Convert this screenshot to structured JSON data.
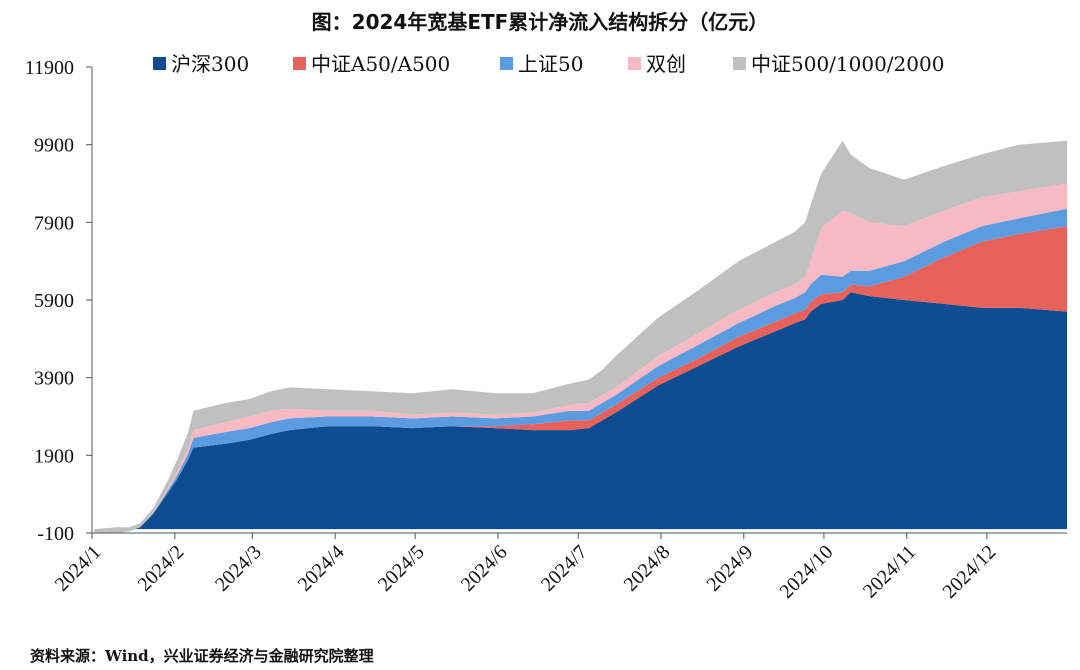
{
  "title": "图：2024年宽基ETF累计净流入结构拆分（亿元）",
  "source": "资料来源：Wind，兴业证券经济与金融研究院整理",
  "chart_data": {
    "type": "area",
    "stacked": true,
    "title": "图：2024年宽基ETF累计净流入结构拆分（亿元）",
    "xlabel": "",
    "ylabel": "",
    "ylim": [
      -100,
      11900
    ],
    "yticks": [
      -100,
      1900,
      3900,
      5900,
      7900,
      9900,
      11900
    ],
    "xtick_labels": [
      "2024/1",
      "2024/2",
      "2024/3",
      "2024/4",
      "2024/5",
      "2024/6",
      "2024/7",
      "2024/8",
      "2024/9",
      "2024/10",
      "2024/11",
      "2024/12"
    ],
    "legend_position": "top",
    "x": [
      "2024-01-02",
      "2024-01-10",
      "2024-01-15",
      "2024-01-19",
      "2024-01-24",
      "2024-01-29",
      "2024-02-02",
      "2024-02-06",
      "2024-02-08",
      "2024-02-20",
      "2024-02-29",
      "2024-03-08",
      "2024-03-15",
      "2024-03-29",
      "2024-04-15",
      "2024-04-30",
      "2024-05-15",
      "2024-05-31",
      "2024-06-14",
      "2024-06-28",
      "2024-07-05",
      "2024-07-10",
      "2024-07-15",
      "2024-07-31",
      "2024-08-15",
      "2024-08-30",
      "2024-09-13",
      "2024-09-20",
      "2024-09-24",
      "2024-09-26",
      "2024-09-30",
      "2024-10-08",
      "2024-10-11",
      "2024-10-18",
      "2024-10-31",
      "2024-11-15",
      "2024-11-29",
      "2024-12-13",
      "2024-12-31"
    ],
    "series": [
      {
        "name": "沪深300",
        "color": "#0e4c92",
        "values": [
          -100,
          -100,
          -50,
          50,
          400,
          900,
          1300,
          1800,
          2100,
          2200,
          2300,
          2450,
          2550,
          2650,
          2650,
          2600,
          2650,
          2600,
          2550,
          2550,
          2600,
          2800,
          3000,
          3700,
          4200,
          4700,
          5100,
          5300,
          5400,
          5600,
          5800,
          5900,
          6100,
          6000,
          5900,
          5800,
          5700,
          5700,
          5600
        ]
      },
      {
        "name": "中证A50/A500",
        "color": "#e8625c",
        "values": [
          0,
          0,
          0,
          0,
          0,
          0,
          0,
          0,
          0,
          0,
          0,
          0,
          0,
          0,
          0,
          0,
          0,
          50,
          150,
          250,
          200,
          200,
          200,
          200,
          200,
          250,
          250,
          250,
          250,
          250,
          250,
          200,
          200,
          250,
          600,
          1200,
          1700,
          1900,
          2200
        ]
      },
      {
        "name": "上证50",
        "color": "#5b9be0",
        "values": [
          0,
          0,
          0,
          0,
          20,
          50,
          100,
          150,
          250,
          300,
          300,
          300,
          300,
          250,
          250,
          250,
          250,
          200,
          200,
          250,
          250,
          250,
          250,
          300,
          350,
          350,
          400,
          400,
          450,
          450,
          500,
          400,
          350,
          400,
          400,
          400,
          400,
          400,
          450
        ]
      },
      {
        "name": "双创",
        "color": "#f7bac4",
        "values": [
          0,
          0,
          0,
          0,
          20,
          50,
          100,
          150,
          200,
          250,
          300,
          300,
          250,
          150,
          150,
          100,
          100,
          100,
          100,
          150,
          200,
          200,
          200,
          250,
          300,
          350,
          350,
          350,
          400,
          600,
          1200,
          1700,
          1500,
          1250,
          900,
          800,
          750,
          700,
          650
        ]
      },
      {
        "name": "中证500/1000/2000",
        "color": "#c0c0c0",
        "values": [
          100,
          150,
          100,
          100,
          100,
          200,
          300,
          400,
          500,
          500,
          450,
          500,
          550,
          550,
          500,
          550,
          600,
          550,
          500,
          550,
          600,
          650,
          800,
          1000,
          1100,
          1250,
          1300,
          1350,
          1400,
          1450,
          1400,
          1800,
          1500,
          1400,
          1200,
          1150,
          1100,
          1200,
          1100
        ]
      }
    ]
  }
}
